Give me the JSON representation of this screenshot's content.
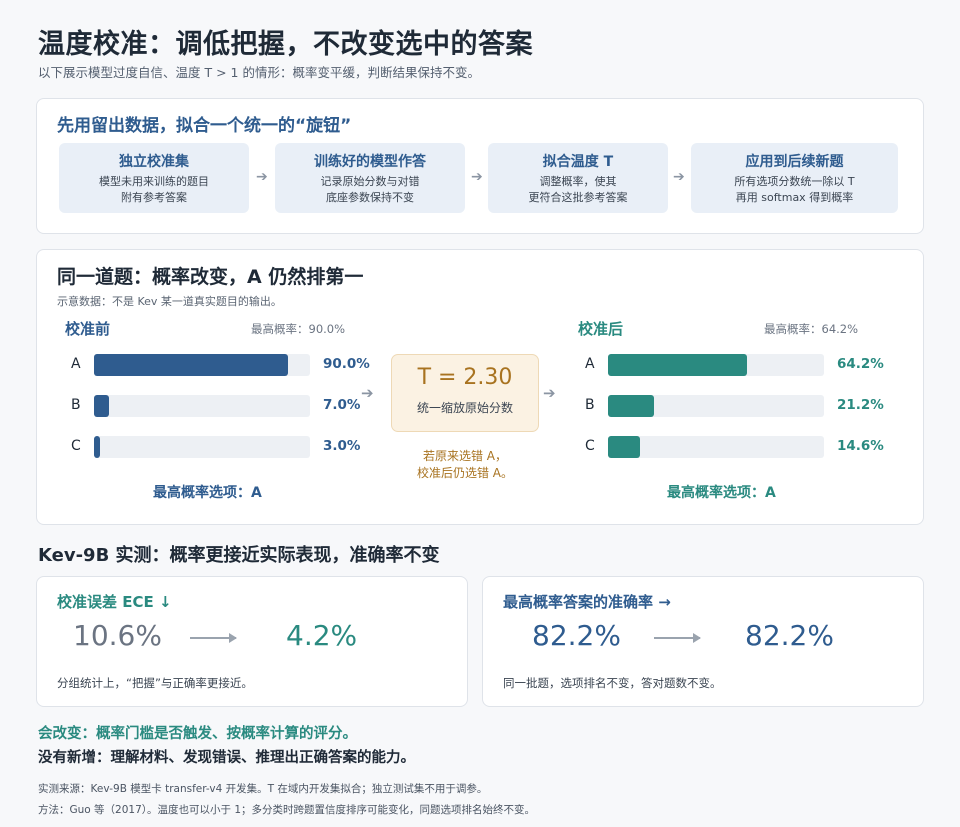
{
  "header": {
    "title": "温度校准：调低把握，不改变选中的答案",
    "subtitle": "以下展示模型过度自信、温度 T > 1 的情形：概率变平缓，判断结果保持不变。"
  },
  "process": {
    "title": "先用留出数据，拟合一个统一的“旋钮”",
    "steps": [
      {
        "title": "独立校准集",
        "desc": "模型未用来训练的题目\n附有参考答案"
      },
      {
        "title": "训练好的模型作答",
        "desc": "记录原始分数与对错\n底座参数保持不变"
      },
      {
        "title": "拟合温度 T",
        "desc": "调整概率，使其\n更符合这批参考答案"
      },
      {
        "title": "应用到后续新题",
        "desc": "所有选项分数统一除以 T\n再用 softmax 得到概率"
      }
    ],
    "arrow": "➔"
  },
  "compare": {
    "title": "同一道题：概率改变，A 仍然排第一",
    "note": "示意数据：不是 Kev 某一道真实题目的输出。",
    "before": {
      "title": "校准前",
      "max_label": "最高概率：90.0%",
      "rows": [
        {
          "label": "A",
          "value": 90.0,
          "text": "90.0%"
        },
        {
          "label": "B",
          "value": 7.0,
          "text": "7.0%"
        },
        {
          "label": "C",
          "value": 3.0,
          "text": "3.0%"
        }
      ],
      "footer": "最高概率选项：A"
    },
    "after": {
      "title": "校准后",
      "max_label": "最高概率：64.2%",
      "rows": [
        {
          "label": "A",
          "value": 64.2,
          "text": "64.2%"
        },
        {
          "label": "B",
          "value": 21.2,
          "text": "21.2%"
        },
        {
          "label": "C",
          "value": 14.6,
          "text": "14.6%"
        }
      ],
      "footer": "最高概率选项：A"
    },
    "temperature": {
      "value": "T = 2.30",
      "label": "统一缩放原始分数",
      "note": "若原来选错 A，\n校准后仍选错 A。"
    }
  },
  "results": {
    "title": "Kev-9B 实测：概率更接近实际表现，准确率不变",
    "ece": {
      "title": "校准误差 ECE ↓",
      "before": "10.6%",
      "after": "4.2%",
      "note": "分组统计上，“把握”与正确率更接近。"
    },
    "accuracy": {
      "title": "最高概率答案的准确率 →",
      "before": "82.2%",
      "after": "82.2%",
      "note": "同一批题，选项排名不变，答对题数不变。"
    }
  },
  "summary": {
    "changes": "会改变：概率门槛是否触发、按概率计算的评分。",
    "no_new": "没有新增：理解材料、发现错误、推理出正确答案的能力。"
  },
  "footnotes": {
    "source": "实测来源：Kev-9B 模型卡 transfer-v4 开发集。T 在域内开发集拟合；独立测试集不用于调参。",
    "method": "方法：Guo 等（2017）。温度也可以小于 1；多分类时跨题置信度排序可能变化，同题选项排名始终不变。"
  },
  "colors": {
    "blue": "#2f5c8f",
    "teal": "#2a8a80",
    "amber": "#a87320",
    "gray_text": "#6b7482"
  }
}
